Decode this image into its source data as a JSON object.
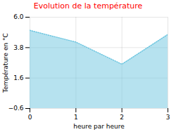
{
  "chart_data": {
    "type": "area",
    "title": "Evolution de la température",
    "title_color": "#ff0000",
    "xlabel": "heure par heure",
    "ylabel": "Température en °C",
    "x": [
      0,
      1,
      2,
      3
    ],
    "values": [
      5.05,
      4.2,
      2.6,
      4.75
    ],
    "color": "#6ec6e0",
    "line_style": "dotted",
    "xlim": [
      0,
      3
    ],
    "ylim": [
      -0.6,
      6.0
    ],
    "xticks": [
      0,
      1,
      2,
      3
    ],
    "yticks": [
      -0.6,
      1.6,
      3.8,
      {
        "value": 6.0,
        "label": "6.0"
      }
    ],
    "grid": true
  }
}
